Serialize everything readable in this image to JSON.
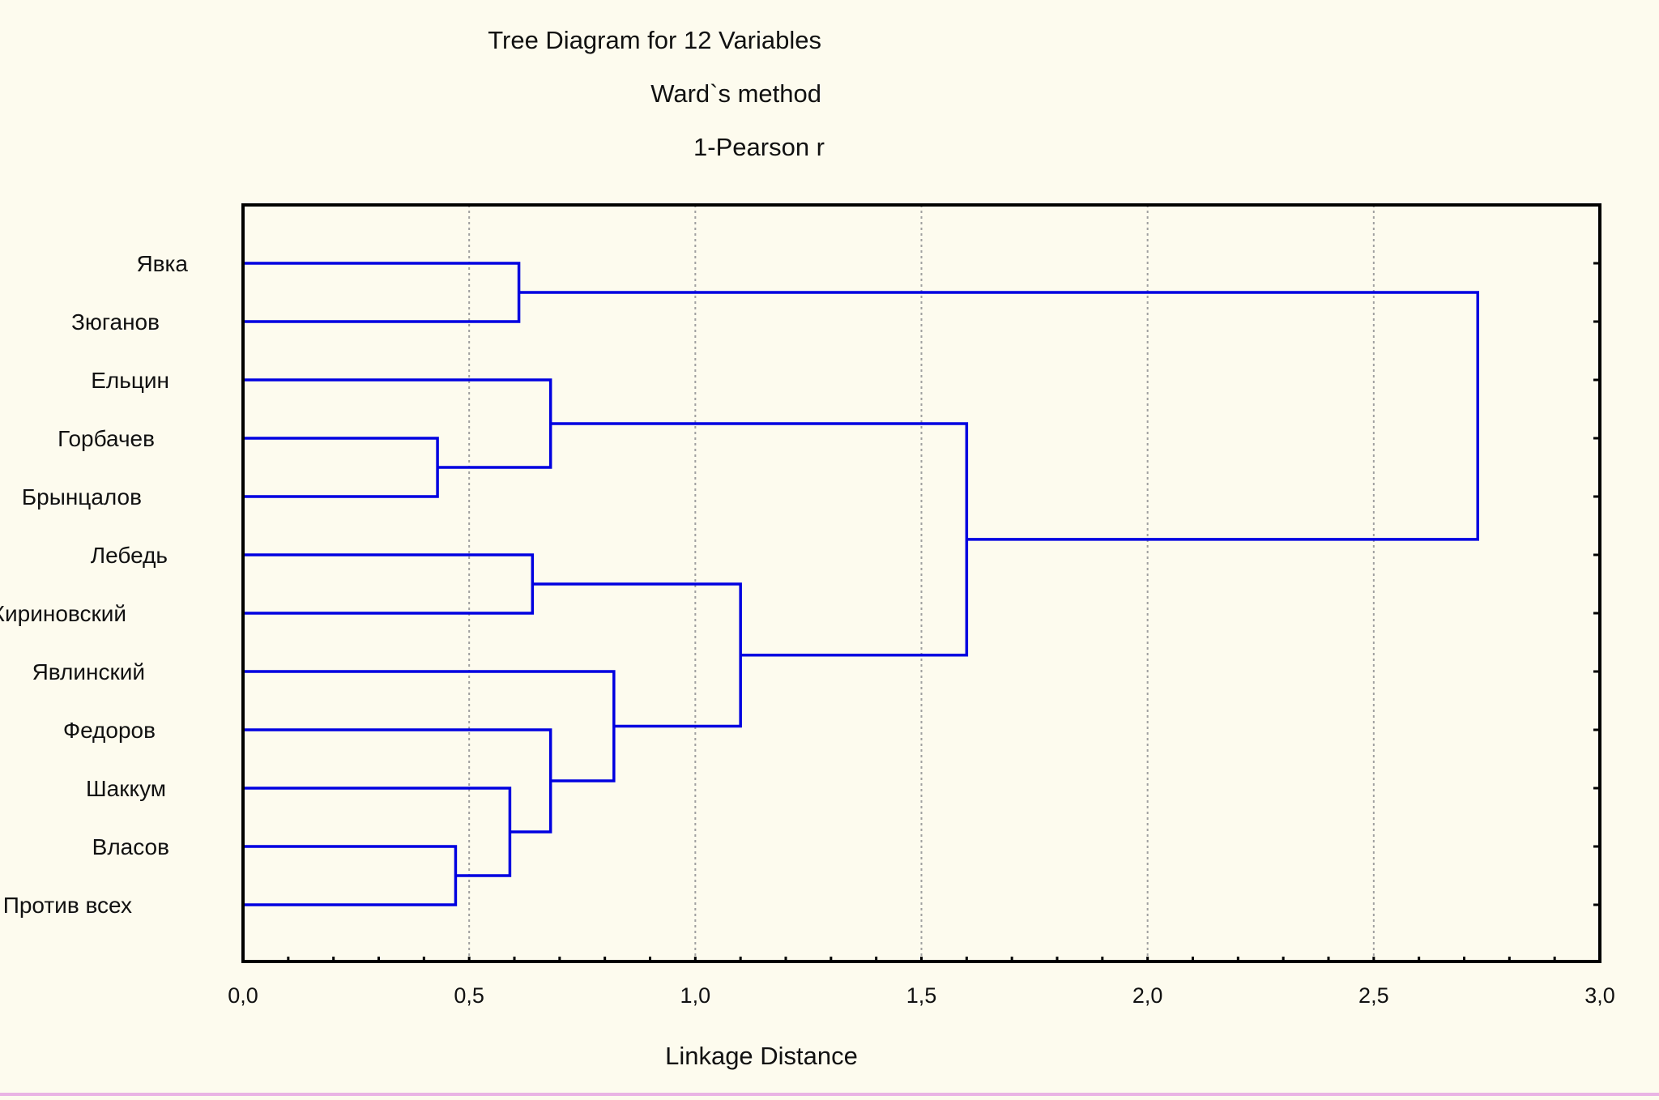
{
  "colors": {
    "background": "#fdfbee",
    "tree": "#0000e0",
    "axis": "#000000",
    "grid": "#a0a0a0"
  },
  "chart_data": {
    "type": "dendrogram",
    "title": "Tree Diagram for 12 Variables",
    "subtitle_lines": [
      "Ward`s method",
      "1-Pearson r"
    ],
    "xlabel": "Linkage Distance",
    "xlim": [
      0,
      3.0
    ],
    "x_ticks": [
      0,
      0.5,
      1.0,
      1.5,
      2.0,
      2.5,
      3.0
    ],
    "x_tick_labels": [
      "0,0",
      "0,5",
      "1,0",
      "1,5",
      "2,0",
      "2,5",
      "3,0"
    ],
    "grid": "vertical dotted lines at major ticks",
    "leaves": [
      "Явка",
      "Зюганов",
      "Ельцин",
      "Горбачев",
      "Брынцалов",
      "Лебедь",
      "Жириновский",
      "Явлинский",
      "Федоров",
      "Шаккум",
      "Власов",
      "Против всех"
    ],
    "merges": [
      {
        "a": "Горбачев",
        "b": "Брынцалов",
        "distance": 0.43
      },
      {
        "a": "Власов",
        "b": "Против всех",
        "distance": 0.47
      },
      {
        "a": "Шаккум",
        "b": 2,
        "distance": 0.59
      },
      {
        "a": "Явка",
        "b": "Зюганов",
        "distance": 0.61
      },
      {
        "a": "Лебедь",
        "b": "Жириновский",
        "distance": 0.64
      },
      {
        "a": "Федоров",
        "b": 3,
        "distance": 0.68
      },
      {
        "a": "Ельцин",
        "b": 1,
        "distance": 0.68
      },
      {
        "a": "Явлинский",
        "b": 6,
        "distance": 0.82
      },
      {
        "a": 5,
        "b": 8,
        "distance": 1.1
      },
      {
        "a": 7,
        "b": 9,
        "distance": 1.6
      },
      {
        "a": 4,
        "b": 10,
        "distance": 2.73
      }
    ]
  }
}
